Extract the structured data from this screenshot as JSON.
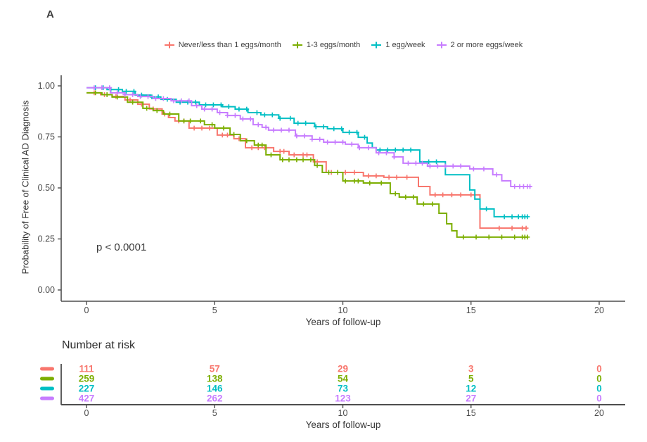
{
  "panel_label": "A",
  "chart_data": {
    "type": "line",
    "subtype": "kaplan-meier-step",
    "title": "",
    "xlabel": "Years of follow-up",
    "ylabel": "Probability of Free of Clinical AD Diagnosis",
    "xlim": [
      0,
      20
    ],
    "ylim": [
      0,
      1
    ],
    "grid": false,
    "legend_position": "top",
    "x_ticks": [
      0,
      5,
      10,
      15,
      20
    ],
    "y_ticks": [
      0,
      0.25,
      0.5,
      0.75,
      1
    ],
    "y_tick_labels": [
      "0.00",
      "0.25",
      "0.50",
      "0.75",
      "1.00"
    ],
    "annotation": {
      "text": "p < 0.0001",
      "x": 0.9,
      "y": 0.21
    },
    "series": [
      {
        "name": "Never/less than 1 eggs/month",
        "color": "#F8766D",
        "steps": [
          [
            0,
            0.966
          ],
          [
            0.55,
            0.957
          ],
          [
            1.0,
            0.948
          ],
          [
            1.5,
            0.931
          ],
          [
            2.0,
            0.91
          ],
          [
            2.45,
            0.887
          ],
          [
            2.95,
            0.862
          ],
          [
            3.2,
            0.845
          ],
          [
            3.45,
            0.828
          ],
          [
            4.0,
            0.793
          ],
          [
            5.1,
            0.759
          ],
          [
            5.75,
            0.741
          ],
          [
            6.2,
            0.697
          ],
          [
            7.3,
            0.679
          ],
          [
            7.9,
            0.662
          ],
          [
            8.85,
            0.628
          ],
          [
            9.35,
            0.576
          ],
          [
            10.8,
            0.559
          ],
          [
            11.6,
            0.552
          ],
          [
            12.95,
            0.507
          ],
          [
            13.4,
            0.466
          ],
          [
            15.35,
            0.303
          ],
          [
            17.15,
            0.303
          ]
        ],
        "censors": [
          0.3,
          0.7,
          1.15,
          1.7,
          2.15,
          2.6,
          3.05,
          3.6,
          3.8,
          4.2,
          4.5,
          4.8,
          5.3,
          5.5,
          5.95,
          6.45,
          6.7,
          6.95,
          7.55,
          7.7,
          8.1,
          8.45,
          8.6,
          9.0,
          9.55,
          9.8,
          10.1,
          10.45,
          11.0,
          11.3,
          11.8,
          12.1,
          12.5,
          13.6,
          13.9,
          14.25,
          14.6,
          15.0,
          16.1,
          16.6,
          17.0,
          17.15
        ]
      },
      {
        "name": "1-3 eggs/month",
        "color": "#7CAE00",
        "steps": [
          [
            0,
            0.966
          ],
          [
            0.6,
            0.957
          ],
          [
            1.0,
            0.945
          ],
          [
            1.6,
            0.92
          ],
          [
            2.2,
            0.89
          ],
          [
            2.6,
            0.879
          ],
          [
            3.0,
            0.862
          ],
          [
            3.6,
            0.828
          ],
          [
            4.6,
            0.81
          ],
          [
            5.0,
            0.793
          ],
          [
            5.6,
            0.762
          ],
          [
            6.0,
            0.731
          ],
          [
            6.55,
            0.71
          ],
          [
            7.0,
            0.662
          ],
          [
            7.55,
            0.638
          ],
          [
            8.9,
            0.61
          ],
          [
            9.2,
            0.576
          ],
          [
            10.0,
            0.534
          ],
          [
            10.8,
            0.524
          ],
          [
            11.85,
            0.472
          ],
          [
            12.2,
            0.455
          ],
          [
            12.9,
            0.421
          ],
          [
            13.75,
            0.376
          ],
          [
            14.05,
            0.324
          ],
          [
            14.25,
            0.29
          ],
          [
            14.45,
            0.259
          ],
          [
            17.2,
            0.259
          ]
        ],
        "censors": [
          0.35,
          0.8,
          1.2,
          1.8,
          2.35,
          2.75,
          3.25,
          3.8,
          4.05,
          4.45,
          4.9,
          5.35,
          5.75,
          6.25,
          6.7,
          6.85,
          7.2,
          7.65,
          7.9,
          8.2,
          8.45,
          8.75,
          9.0,
          9.45,
          9.8,
          10.1,
          10.45,
          10.6,
          11.05,
          11.5,
          12.05,
          12.45,
          12.75,
          13.15,
          13.5,
          14.7,
          15.2,
          15.7,
          16.2,
          16.7,
          17.0,
          17.1,
          17.2
        ]
      },
      {
        "name": "1 egg/week",
        "color": "#00BFC4",
        "steps": [
          [
            0,
            0.991
          ],
          [
            0.8,
            0.982
          ],
          [
            1.4,
            0.973
          ],
          [
            1.9,
            0.955
          ],
          [
            2.5,
            0.946
          ],
          [
            2.9,
            0.934
          ],
          [
            3.5,
            0.92
          ],
          [
            4.4,
            0.907
          ],
          [
            5.3,
            0.898
          ],
          [
            5.8,
            0.886
          ],
          [
            6.3,
            0.869
          ],
          [
            6.8,
            0.858
          ],
          [
            7.5,
            0.841
          ],
          [
            8.1,
            0.817
          ],
          [
            8.9,
            0.8
          ],
          [
            9.4,
            0.79
          ],
          [
            10.0,
            0.772
          ],
          [
            10.6,
            0.748
          ],
          [
            10.95,
            0.72
          ],
          [
            11.15,
            0.697
          ],
          [
            11.3,
            0.686
          ],
          [
            13.0,
            0.628
          ],
          [
            14.0,
            0.565
          ],
          [
            14.95,
            0.49
          ],
          [
            15.15,
            0.445
          ],
          [
            15.35,
            0.397
          ],
          [
            15.9,
            0.359
          ],
          [
            17.2,
            0.359
          ]
        ],
        "censors": [
          0.35,
          0.65,
          0.95,
          1.25,
          1.55,
          1.85,
          2.15,
          2.55,
          2.8,
          3.15,
          3.65,
          3.95,
          4.25,
          4.65,
          4.95,
          5.25,
          5.55,
          5.95,
          6.25,
          6.65,
          6.95,
          7.25,
          7.55,
          7.95,
          8.25,
          8.55,
          8.95,
          9.25,
          9.65,
          9.95,
          10.25,
          10.55,
          10.85,
          11.45,
          11.75,
          12.05,
          12.35,
          12.65,
          13.35,
          13.65,
          15.6,
          16.3,
          16.6,
          16.85,
          17.0,
          17.1,
          17.2
        ]
      },
      {
        "name": "2 or more eggs/week",
        "color": "#C77CFF",
        "steps": [
          [
            0,
            0.991
          ],
          [
            0.93,
            0.966
          ],
          [
            1.5,
            0.957
          ],
          [
            2.0,
            0.948
          ],
          [
            2.6,
            0.938
          ],
          [
            3.3,
            0.927
          ],
          [
            4.1,
            0.903
          ],
          [
            4.5,
            0.886
          ],
          [
            5.1,
            0.869
          ],
          [
            5.5,
            0.855
          ],
          [
            6.0,
            0.838
          ],
          [
            6.5,
            0.81
          ],
          [
            6.85,
            0.797
          ],
          [
            7.1,
            0.783
          ],
          [
            8.15,
            0.755
          ],
          [
            8.8,
            0.738
          ],
          [
            9.25,
            0.724
          ],
          [
            10.1,
            0.714
          ],
          [
            10.6,
            0.697
          ],
          [
            11.3,
            0.672
          ],
          [
            12.0,
            0.652
          ],
          [
            12.35,
            0.621
          ],
          [
            13.3,
            0.607
          ],
          [
            14.95,
            0.593
          ],
          [
            15.85,
            0.565
          ],
          [
            16.2,
            0.535
          ],
          [
            16.55,
            0.507
          ],
          [
            17.35,
            0.507
          ]
        ],
        "censors": [
          0.3,
          0.6,
          0.9,
          1.2,
          1.5,
          1.8,
          2.1,
          2.4,
          2.7,
          3.0,
          3.4,
          3.7,
          4.0,
          4.3,
          4.6,
          4.9,
          5.2,
          5.5,
          5.8,
          6.1,
          6.4,
          6.7,
          7.0,
          7.3,
          7.6,
          7.9,
          8.2,
          8.5,
          8.8,
          9.1,
          9.4,
          9.7,
          10.0,
          10.35,
          10.65,
          11.0,
          11.4,
          11.7,
          12.0,
          12.55,
          12.85,
          13.1,
          13.4,
          13.7,
          14.0,
          14.3,
          14.6,
          15.1,
          15.5,
          16.0,
          16.7,
          16.9,
          17.05,
          17.2,
          17.3
        ]
      }
    ],
    "risk_table": {
      "title": "Number at risk",
      "times": [
        0,
        5,
        10,
        15,
        20
      ],
      "rows": [
        {
          "name": "Never/less than 1 eggs/month",
          "color": "#F8766D",
          "counts": [
            111,
            57,
            29,
            3,
            0
          ]
        },
        {
          "name": "1-3 eggs/month",
          "color": "#7CAE00",
          "counts": [
            259,
            138,
            54,
            5,
            0
          ]
        },
        {
          "name": "1 egg/week",
          "color": "#00BFC4",
          "counts": [
            227,
            146,
            73,
            12,
            0
          ]
        },
        {
          "name": "2 or more eggs/week",
          "color": "#C77CFF",
          "counts": [
            427,
            262,
            123,
            27,
            0
          ]
        }
      ]
    }
  }
}
